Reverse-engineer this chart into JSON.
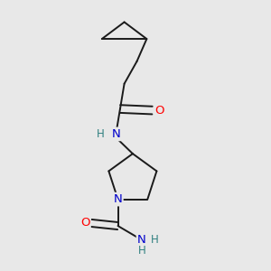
{
  "background_color": "#e8e8e8",
  "bond_color": "#1a1a1a",
  "atom_colors": {
    "O": "#ff0000",
    "N": "#0000cc",
    "H": "#2f8080",
    "C": "#000000"
  },
  "font_size": 8.5,
  "line_width": 1.4,
  "figsize": [
    3.0,
    3.0
  ],
  "dpi": 100
}
